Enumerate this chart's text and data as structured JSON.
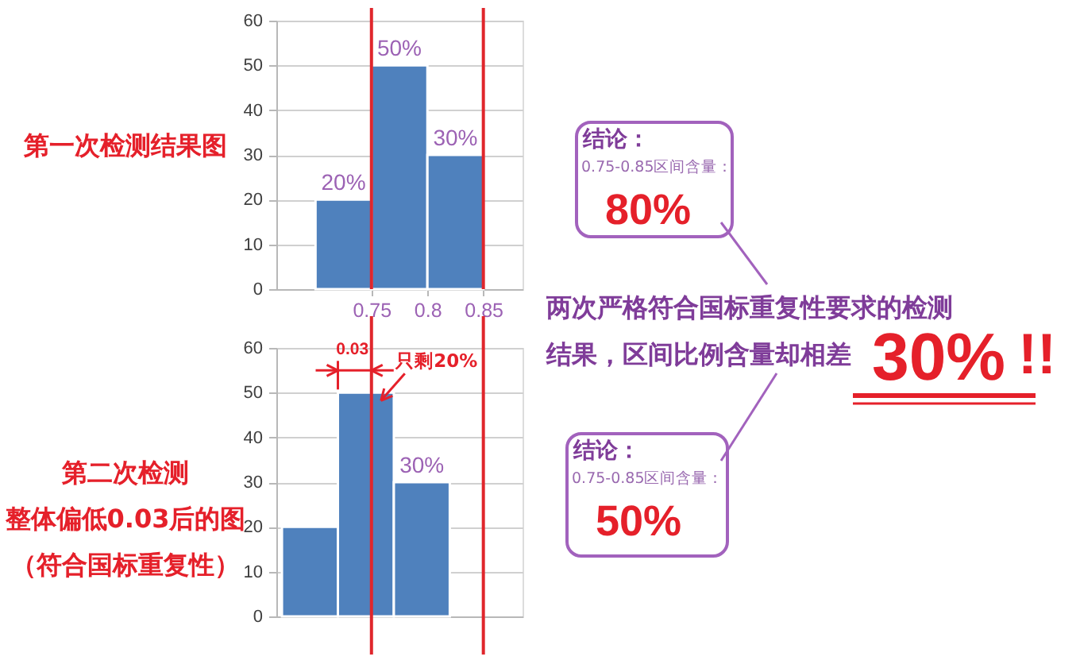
{
  "chart_data": [
    {
      "type": "histogram",
      "title": "第一次检测结果图",
      "bins": [
        0.7,
        0.75,
        0.8,
        0.85
      ],
      "values": [
        20,
        50,
        30
      ],
      "value_labels": [
        "20%",
        "50%",
        "30%"
      ],
      "color": "#4f81bd",
      "xlim": [
        0.665,
        0.885
      ],
      "xticks": [
        0.75,
        0.8,
        0.85
      ],
      "ylim": [
        0,
        60
      ],
      "yticks": [
        0,
        10,
        20,
        30,
        40,
        50,
        60
      ],
      "grid": "y",
      "ref_lines": [
        {
          "axis": "x",
          "value": 0.75,
          "color": "#e0262c"
        },
        {
          "axis": "x",
          "value": 0.85,
          "color": "#e0262c"
        }
      ],
      "annotations": [
        "结论：",
        "0.75-0.85区间含量：",
        "80%"
      ]
    },
    {
      "type": "histogram",
      "title": "第二次检测",
      "subtitle": "整体偏低0.03后的图（符合国标重复性）",
      "bins": [
        0.67,
        0.72,
        0.77,
        0.82
      ],
      "values": [
        20,
        50,
        30
      ],
      "value_labels": [
        null,
        null,
        "30%"
      ],
      "color": "#4f81bd",
      "xlim": [
        0.665,
        0.885
      ],
      "ylim": [
        0,
        60
      ],
      "yticks": [
        0,
        10,
        20,
        30,
        40,
        50,
        60
      ],
      "tick_labels": "y",
      "grid": "y",
      "ref_lines": [
        {
          "axis": "x",
          "value": 0.75,
          "color": "#e0262c"
        },
        {
          "axis": "x",
          "value": 0.85,
          "color": "#e0262c"
        }
      ],
      "annotations": [
        "0.03",
        "只剩20%",
        "结论：",
        "0.75-0.85区间含量：",
        "50%"
      ]
    },
    {
      "type": "other",
      "annotations": [
        "两次严格符合国标重复性要求的检测",
        "结果，区间比例含量却相差",
        "30%",
        "!!"
      ]
    }
  ]
}
